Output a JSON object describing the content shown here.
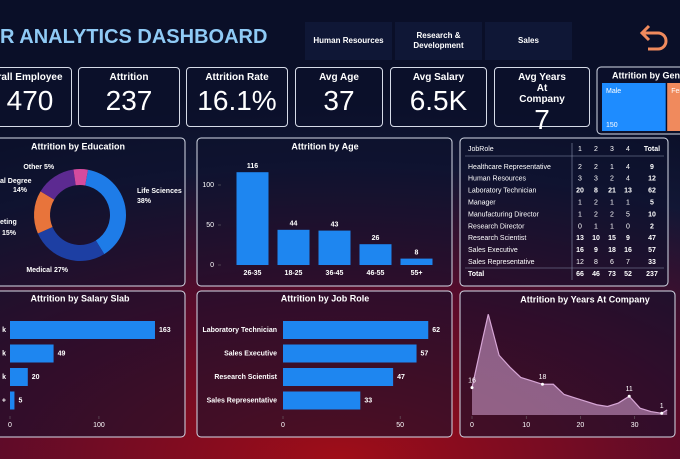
{
  "header": {
    "title": "R ANALYTICS DASHBOARD",
    "buttons": [
      "Human Resources",
      "Research & Development",
      "Sales"
    ]
  },
  "kpis": [
    {
      "label": "rall Employee",
      "value": "470"
    },
    {
      "label": "Attrition",
      "value": "237"
    },
    {
      "label": "Attrition Rate",
      "value": "16.1%"
    },
    {
      "label": "Avg Age",
      "value": "37"
    },
    {
      "label": "Avg Salary",
      "value": "6.5K"
    },
    {
      "label": "Avg Years At Company",
      "value": "7"
    }
  ],
  "table": {
    "columns": [
      "JobRole",
      "1",
      "2",
      "3",
      "4",
      "Total"
    ],
    "rows": [
      [
        "Healthcare Representative",
        2,
        2,
        1,
        4,
        9
      ],
      [
        "Human Resources",
        3,
        3,
        2,
        4,
        12
      ],
      [
        "Laboratory Technician",
        20,
        8,
        21,
        13,
        62
      ],
      [
        "Manager",
        1,
        2,
        1,
        1,
        5
      ],
      [
        "Manufacturing Director",
        1,
        2,
        2,
        5,
        10
      ],
      [
        "Research Director",
        0,
        1,
        1,
        0,
        2
      ],
      [
        "Research Scientist",
        13,
        10,
        15,
        9,
        47
      ],
      [
        "Sales Executive",
        16,
        9,
        18,
        16,
        57
      ],
      [
        "Sales Representative",
        12,
        8,
        6,
        7,
        33
      ],
      [
        "Total",
        66,
        46,
        73,
        52,
        237
      ]
    ]
  },
  "chart_data": [
    {
      "type": "treemap",
      "title": "Attrition by Gend",
      "categories": [
        "Male",
        "Fem"
      ],
      "values": [
        150,
        87
      ],
      "colors": [
        "#1e8cff",
        "#f08a5d"
      ]
    },
    {
      "type": "pie",
      "title": "Attrition by Education",
      "categories": [
        "Life Sciences",
        "Medical",
        "eting",
        "al Degree",
        "Other"
      ],
      "values": [
        38,
        27,
        15,
        14,
        5
      ],
      "value_labels": [
        "38%",
        "27%",
        "15%",
        "14%",
        "5%"
      ],
      "colors": [
        "#1e7ce8",
        "#1d3fa3",
        "#e8743b",
        "#5c2a91",
        "#d44b9e"
      ]
    },
    {
      "type": "bar",
      "title": "Attrition by Age",
      "categories": [
        "26-35",
        "18-25",
        "36-45",
        "46-55",
        "55+"
      ],
      "values": [
        116,
        44,
        43,
        26,
        8
      ],
      "color": "#1e86f0",
      "ylim": [
        0,
        125
      ],
      "yticks": [
        0,
        50,
        100
      ]
    },
    {
      "type": "hbar",
      "title": "Attrition by Salary Slab",
      "categories": [
        "k",
        "k",
        "k",
        "+"
      ],
      "values": [
        163,
        49,
        20,
        5
      ],
      "color": "#1e86f0",
      "xlim": [
        0,
        190
      ],
      "xticks": [
        0,
        100
      ]
    },
    {
      "type": "hbar",
      "title": "Attrition by Job Role",
      "categories": [
        "Laboratory Technician",
        "Sales Executive",
        "Research Scientist",
        "Sales Representative"
      ],
      "values": [
        62,
        57,
        47,
        33
      ],
      "color": "#1e86f0",
      "xlim": [
        0,
        70
      ],
      "xticks": [
        0,
        50
      ]
    },
    {
      "type": "area",
      "title": "Attrition by Years At Company",
      "x": [
        0,
        2,
        3,
        5,
        7,
        9,
        11,
        13,
        15,
        17,
        19,
        21,
        23,
        25,
        27,
        29,
        31,
        33,
        35,
        36
      ],
      "values": [
        16,
        45,
        59,
        35,
        28,
        22,
        20,
        18,
        18,
        12,
        10,
        8,
        6,
        5,
        7,
        11,
        4,
        2,
        1,
        3
      ],
      "color": "#d7a6d6",
      "xlim": [
        0,
        38
      ],
      "ylim": [
        0,
        65
      ],
      "xticks": [
        0,
        10,
        20,
        30
      ]
    }
  ]
}
